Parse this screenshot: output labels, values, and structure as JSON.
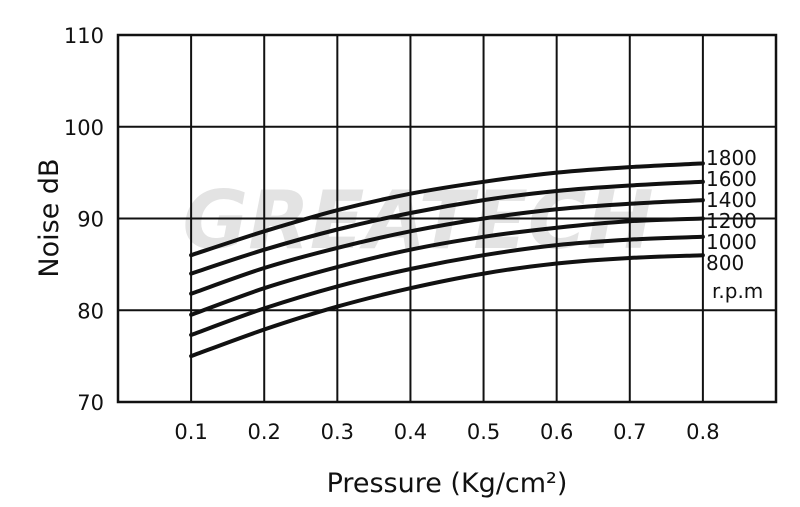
{
  "chart_data": {
    "type": "line",
    "xlabel": "Pressure (Kg/cm²)",
    "ylabel": "Noise dB",
    "xlim": [
      0,
      0.9
    ],
    "ylim": [
      70,
      110
    ],
    "xticks": [
      0.1,
      0.2,
      0.3,
      0.4,
      0.5,
      0.6,
      0.7,
      0.8
    ],
    "xtick_labels": [
      "0.1",
      "0.2",
      "0.3",
      "0.4",
      "0.5",
      "0.6",
      "0.7",
      "0.8"
    ],
    "yticks": [
      70,
      80,
      90,
      100,
      110
    ],
    "ytick_labels": [
      "70",
      "80",
      "90",
      "100",
      "110"
    ],
    "grid": true,
    "watermark": "GREATECH",
    "unit_label": "r.p.m",
    "x": [
      0.1,
      0.2,
      0.3,
      0.4,
      0.5,
      0.6,
      0.7,
      0.8
    ],
    "series": [
      {
        "name": "1800",
        "values": [
          86.0,
          88.6,
          90.9,
          92.7,
          94.0,
          95.0,
          95.6,
          96.0
        ]
      },
      {
        "name": "1600",
        "values": [
          84.0,
          86.6,
          88.8,
          90.6,
          92.0,
          93.0,
          93.6,
          94.0
        ]
      },
      {
        "name": "1400",
        "values": [
          81.8,
          84.6,
          86.8,
          88.6,
          90.0,
          91.0,
          91.6,
          92.0
        ]
      },
      {
        "name": "1200",
        "values": [
          79.5,
          82.4,
          84.7,
          86.6,
          88.0,
          89.0,
          89.7,
          90.0
        ]
      },
      {
        "name": "1000",
        "values": [
          77.3,
          80.2,
          82.6,
          84.5,
          86.0,
          87.1,
          87.7,
          88.0
        ]
      },
      {
        "name": "800",
        "values": [
          75.0,
          77.9,
          80.4,
          82.4,
          84.0,
          85.1,
          85.7,
          86.0
        ]
      }
    ]
  }
}
